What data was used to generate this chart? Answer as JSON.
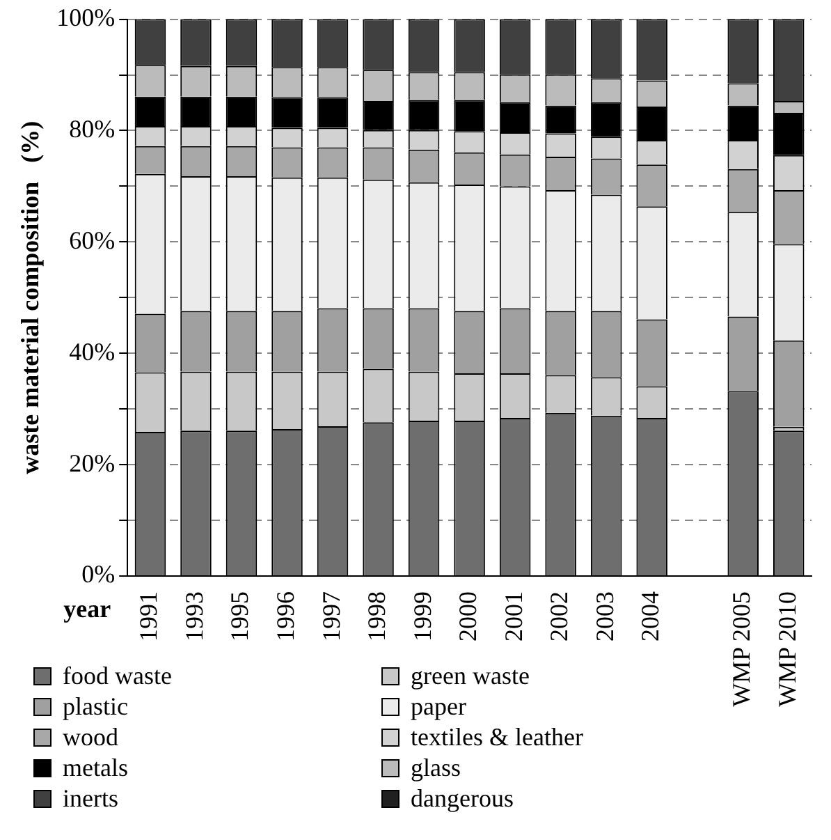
{
  "chart_data": {
    "type": "bar",
    "stacked": true,
    "ylabel": "waste material composition   (%)",
    "xlabel": "year",
    "categories": [
      "1991",
      "1993",
      "1995",
      "1996",
      "1997",
      "1998",
      "1999",
      "2000",
      "2001",
      "2002",
      "2003",
      "2004",
      null,
      "WMP 2005",
      "WMP 2010"
    ],
    "ylim": [
      0,
      100
    ],
    "yticks": [
      {
        "value": 0,
        "label": "0%"
      },
      {
        "value": 10,
        "label": null
      },
      {
        "value": 20,
        "label": "20%"
      },
      {
        "value": 30,
        "label": null
      },
      {
        "value": 40,
        "label": "40%"
      },
      {
        "value": 50,
        "label": null
      },
      {
        "value": 60,
        "label": "60%"
      },
      {
        "value": 70,
        "label": null
      },
      {
        "value": 80,
        "label": "80%"
      },
      {
        "value": 90,
        "label": null
      },
      {
        "value": 100,
        "label": "100%"
      }
    ],
    "grid": "y",
    "line_style": "dashed",
    "legend": "bottom",
    "series": [
      {
        "name": "food waste",
        "color": "#6e6e6e",
        "values": [
          25.9,
          26.1,
          26.1,
          26.4,
          26.9,
          27.6,
          27.9,
          27.9,
          28.4,
          29.3,
          28.8,
          28.4,
          null,
          33.2,
          26.1
        ]
      },
      {
        "name": "green waste",
        "color": "#c8c8c8",
        "values": [
          10.7,
          10.6,
          10.6,
          10.3,
          9.8,
          9.6,
          8.8,
          8.5,
          8.0,
          6.8,
          6.9,
          5.7,
          null,
          0,
          0.7
        ]
      },
      {
        "name": "plastic",
        "color": "#a0a0a0",
        "values": [
          10.5,
          10.9,
          10.9,
          10.9,
          11.4,
          10.9,
          11.4,
          11.2,
          11.7,
          11.5,
          11.9,
          12.0,
          null,
          13.4,
          15.5
        ]
      },
      {
        "name": "paper",
        "color": "#ebebeb",
        "values": [
          25.1,
          24.2,
          24.2,
          24.0,
          23.5,
          23.1,
          22.6,
          22.7,
          21.9,
          21.7,
          20.9,
          20.3,
          null,
          18.8,
          17.3
        ]
      },
      {
        "name": "wood",
        "color": "#a8a8a8",
        "values": [
          5.0,
          5.4,
          5.4,
          5.4,
          5.4,
          5.8,
          5.9,
          5.8,
          5.7,
          6.0,
          6.5,
          7.5,
          null,
          7.7,
          9.7
        ]
      },
      {
        "name": "textiles & leather",
        "color": "#d2d2d2",
        "values": [
          3.6,
          3.6,
          3.6,
          3.5,
          3.5,
          3.1,
          3.5,
          3.8,
          4.0,
          4.2,
          3.9,
          4.4,
          null,
          5.2,
          6.3
        ]
      },
      {
        "name": "metals",
        "color": "#000000",
        "values": [
          5.3,
          5.3,
          5.3,
          5.5,
          5.5,
          5.2,
          5.4,
          5.6,
          5.4,
          5.0,
          6.2,
          6.0,
          null,
          6.2,
          7.6
        ]
      },
      {
        "name": "glass",
        "color": "#bbbbbb",
        "values": [
          5.7,
          5.5,
          5.5,
          5.4,
          5.4,
          5.6,
          5.0,
          5.0,
          5.0,
          5.6,
          4.3,
          4.7,
          null,
          4.0,
          2.1
        ]
      },
      {
        "name": "inerts",
        "color": "#404040",
        "values": [
          8.2,
          8.4,
          8.4,
          8.6,
          8.6,
          9.1,
          9.5,
          9.5,
          9.9,
          9.9,
          10.6,
          11.0,
          null,
          11.5,
          14.7
        ]
      },
      {
        "name": "dangerous",
        "color": "#202020",
        "values": [
          0,
          0,
          0,
          0,
          0,
          0,
          0,
          0,
          0,
          0,
          0,
          0,
          null,
          0,
          0
        ]
      }
    ]
  }
}
